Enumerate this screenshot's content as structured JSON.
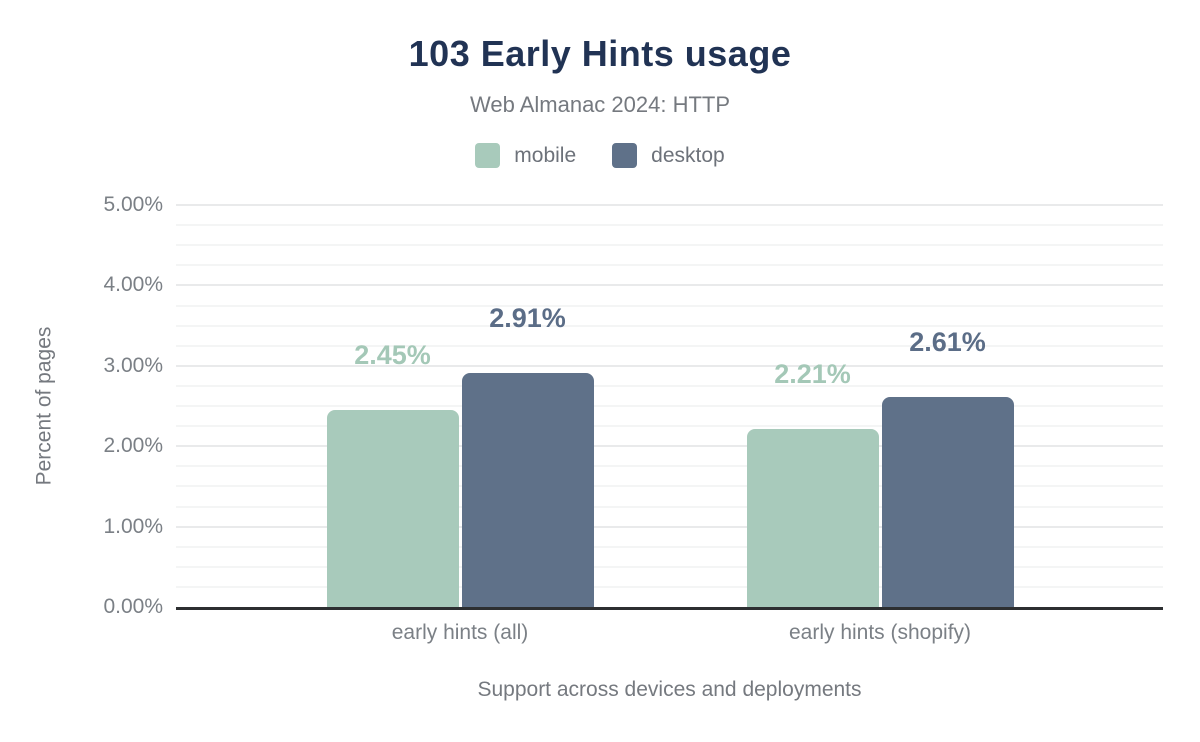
{
  "chart_data": {
    "type": "bar",
    "title": "103 Early Hints usage",
    "subtitle": "Web Almanac 2024: HTTP",
    "legend": [
      "mobile",
      "desktop"
    ],
    "legend_position": "top",
    "categories": [
      "early hints (all)",
      "early hints (shopify)"
    ],
    "series": [
      {
        "name": "mobile",
        "color": "#a8cabb",
        "label_color": "#a4c8b7",
        "values": [
          2.45,
          2.21
        ],
        "data_labels": [
          "2.45%",
          "2.21%"
        ]
      },
      {
        "name": "desktop",
        "color": "#5f7189",
        "label_color": "#5b6d87",
        "values": [
          2.91,
          2.61
        ],
        "data_labels": [
          "2.91%",
          "2.61%"
        ]
      }
    ],
    "xlabel": "Support across devices and deployments",
    "ylabel": "Percent of pages",
    "ylim": [
      0,
      5
    ],
    "yticks": [
      0,
      1,
      2,
      3,
      4,
      5
    ],
    "ytick_labels": [
      "0.00%",
      "1.00%",
      "2.00%",
      "3.00%",
      "4.00%",
      "5.00%"
    ],
    "minor_tick_step": 0.25,
    "grid": "horizontal"
  },
  "colors": {
    "title": "#213354",
    "subtitle": "#75797f",
    "axis_text": "#7b8086",
    "axis_line": "#2d2f31",
    "gridline_major": "#e9eaeb",
    "gridline_minor": "#f4f5f5"
  }
}
